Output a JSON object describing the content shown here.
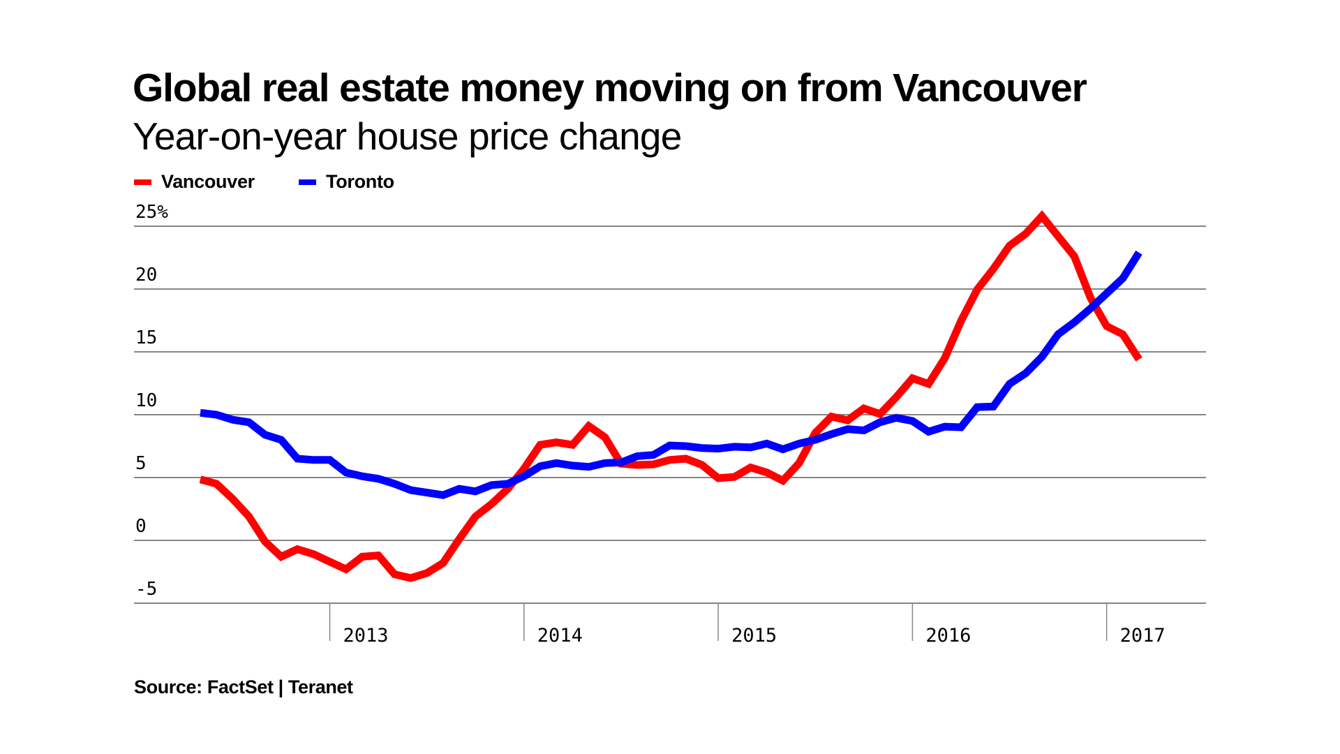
{
  "chart_data": {
    "type": "line",
    "title": "Global real estate money moving on from Vancouver",
    "subtitle": "Year-on-year house price change",
    "xlabel": "",
    "ylabel": "",
    "source": "Source: FactSet | Teranet",
    "x_start": "2012-05",
    "x_end": "2017-03",
    "x_frequency": "monthly",
    "xlim_months_from_2012_05": [
      -4.9,
      59.6
    ],
    "ylim": [
      -5,
      25
    ],
    "yticks": [
      -5,
      0,
      5,
      10,
      15,
      20,
      25
    ],
    "ytick_labels": [
      "-5",
      "0",
      "5",
      "10",
      "15",
      "20",
      "25%"
    ],
    "xticks": [
      {
        "label": "2013",
        "month_index": 8
      },
      {
        "label": "2014",
        "month_index": 20
      },
      {
        "label": "2015",
        "month_index": 32
      },
      {
        "label": "2016",
        "month_index": 44
      },
      {
        "label": "2017",
        "month_index": 56
      }
    ],
    "grid": true,
    "legend_position": "top-left",
    "series": [
      {
        "name": "Vancouver",
        "color": "#ff0000",
        "values": [
          4.85,
          4.5,
          3.3,
          1.9,
          -0.1,
          -1.3,
          -0.7,
          -1.1,
          -1.7,
          -2.3,
          -1.3,
          -1.2,
          -2.7,
          -3.0,
          -2.6,
          -1.8,
          0.1,
          1.9,
          2.9,
          4.1,
          5.7,
          7.6,
          7.8,
          7.6,
          9.1,
          8.2,
          6.1,
          6.0,
          6.05,
          6.4,
          6.5,
          6.0,
          4.95,
          5.05,
          5.8,
          5.4,
          4.75,
          6.15,
          8.55,
          9.85,
          9.55,
          10.5,
          10.05,
          11.4,
          12.9,
          12.45,
          14.5,
          17.45,
          19.95,
          21.6,
          23.45,
          24.4,
          25.8,
          24.2,
          22.6,
          19.3,
          17.05,
          16.4,
          14.4
        ]
      },
      {
        "name": "Toronto",
        "color": "#0000ff",
        "values": [
          10.15,
          10.0,
          9.6,
          9.4,
          8.4,
          8.0,
          6.5,
          6.4,
          6.4,
          5.4,
          5.1,
          4.9,
          4.5,
          4.0,
          3.8,
          3.6,
          4.1,
          3.9,
          4.4,
          4.5,
          5.1,
          5.9,
          6.15,
          5.95,
          5.85,
          6.15,
          6.2,
          6.7,
          6.8,
          7.55,
          7.5,
          7.35,
          7.3,
          7.45,
          7.4,
          7.7,
          7.25,
          7.7,
          8.0,
          8.45,
          8.85,
          8.75,
          9.4,
          9.75,
          9.5,
          8.65,
          9.05,
          9.0,
          10.6,
          10.65,
          12.45,
          13.3,
          14.6,
          16.4,
          17.35,
          18.45,
          19.65,
          20.85,
          22.9
        ]
      }
    ]
  },
  "colors": {
    "gridline": "#858585",
    "text": "#000000",
    "background": "#ffffff"
  }
}
